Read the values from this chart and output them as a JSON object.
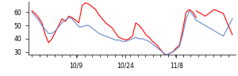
{
  "x_tick_positions": [
    0.27,
    0.57,
    0.88
  ],
  "x_tick_labels": [
    "10/9",
    "10/24",
    "11/8"
  ],
  "ylim": [
    28,
    68
  ],
  "yticks": [
    30,
    40,
    50,
    60
  ],
  "n_points": 50,
  "red_line": [
    61,
    59,
    56,
    52,
    43,
    37,
    40,
    45,
    50,
    55,
    53,
    57,
    56,
    54,
    52,
    65,
    67,
    66,
    64,
    62,
    58,
    55,
    52,
    50,
    48,
    44,
    41,
    40,
    39,
    40,
    42,
    52,
    50,
    47,
    43,
    41,
    38,
    36,
    33,
    30,
    27,
    29,
    30,
    33,
    35,
    47,
    60,
    62,
    60,
    56
  ],
  "blue_line": [
    60,
    57,
    54,
    50,
    47,
    44,
    44,
    46,
    49,
    52,
    54,
    56,
    55,
    52,
    49,
    49,
    50,
    50,
    48,
    46,
    44,
    43,
    42,
    41,
    40,
    39,
    39,
    38,
    38,
    39,
    40,
    41,
    40,
    40,
    39,
    38,
    36,
    34,
    32,
    30,
    28,
    29,
    30,
    32,
    34,
    43,
    55,
    61,
    58,
    54
  ],
  "red_line2": [
    61,
    57,
    62,
    59,
    43
  ],
  "blue_line2": [
    54,
    50,
    46,
    42,
    55
  ],
  "red_color": "#ff0000",
  "blue_color": "#6688cc",
  "bg_color": "#ffffff",
  "line_width": 0.8
}
